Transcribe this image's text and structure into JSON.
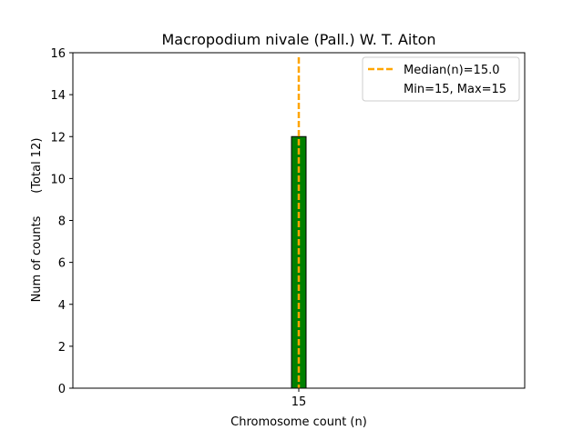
{
  "chart_data": {
    "type": "bar",
    "title": "Macropodium nivale (Pall.) W. T. Aiton",
    "xlabel": "Chromosome count (n)",
    "ylabel": "Num of counts      (Total 12)",
    "categories": [
      "15"
    ],
    "x": [
      15
    ],
    "values": [
      12
    ],
    "xlim": [
      0,
      30
    ],
    "ylim": [
      0,
      16
    ],
    "yticks": [
      0,
      2,
      4,
      6,
      8,
      10,
      12,
      14,
      16
    ],
    "xticks": [
      15
    ],
    "grid": false,
    "bar_color": "#008000",
    "bar_edge_color": "#000000",
    "median": {
      "value": 15.0,
      "color": "#FFA500",
      "style": "dashed"
    },
    "legend": {
      "placement": "top-right",
      "entries": [
        {
          "label": "Median(n)=15.0",
          "marker": "dashed-line",
          "color": "#FFA500"
        },
        {
          "label": "Min=15, Max=15",
          "marker": "none",
          "color": ""
        }
      ]
    }
  }
}
